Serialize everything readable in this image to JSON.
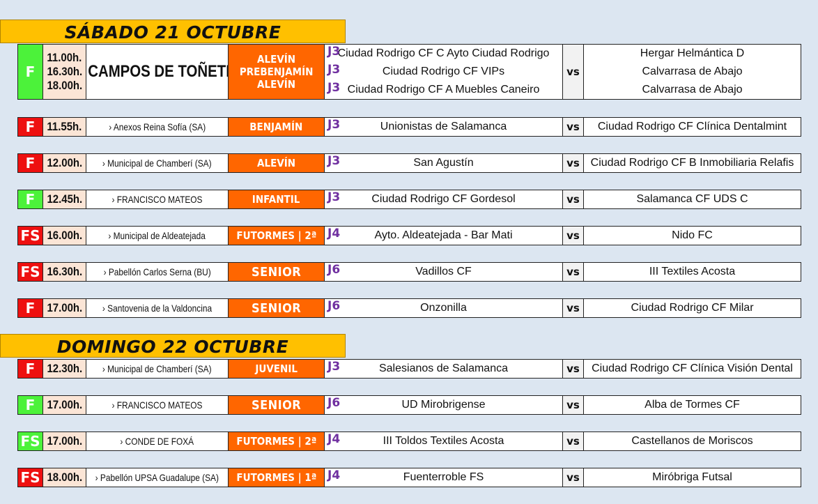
{
  "colors": {
    "home": "#4cf23a",
    "away": "#ee1010",
    "category": "#ff6600",
    "jornada": "#7030a0",
    "header": "#ffc000",
    "time": "#fbe5d6"
  },
  "days": [
    {
      "title": "SÁBADO 21 OCTUBRE",
      "matches": [
        {
          "sport": "F",
          "status": "home",
          "times": [
            "11.00h.",
            "16.30h.",
            "18.00h."
          ],
          "venue": "› CAMPOS DE TOÑETE",
          "venue_big": true,
          "categories": [
            "ALEVÍN",
            "PREBENJAMÍN",
            "ALEVÍN"
          ],
          "jornadas": [
            "J3",
            "J3",
            "J3"
          ],
          "home": [
            "Ciudad Rodrigo CF C Ayto Ciudad Rodrigo",
            "Ciudad Rodrigo CF VIPs",
            "Ciudad Rodrigo CF A Muebles Caneiro"
          ],
          "vs": "vs",
          "away": [
            "Hergar Helmántica D",
            "Calvarrasa de Abajo",
            "Calvarrasa de Abajo"
          ]
        },
        {
          "sport": "F",
          "status": "away",
          "times": [
            "11.55h."
          ],
          "venue": "› Anexos Reina Sofía (SA)",
          "categories": [
            "BENJAMÍN"
          ],
          "jornadas": [
            "J3"
          ],
          "home": [
            "Unionistas de Salamanca"
          ],
          "vs": "vs",
          "away": [
            "Ciudad Rodrigo CF Clínica Dentalmint"
          ]
        },
        {
          "sport": "F",
          "status": "away",
          "times": [
            "12.00h."
          ],
          "venue": "› Municipal de Chamberí (SA)",
          "categories": [
            "ALEVÍN"
          ],
          "jornadas": [
            "J3"
          ],
          "home": [
            "San Agustín"
          ],
          "vs": "vs",
          "away": [
            "Ciudad Rodrigo CF B Inmobiliaria Relafis"
          ]
        },
        {
          "sport": "F",
          "status": "home",
          "times": [
            "12.45h."
          ],
          "venue": "› FRANCISCO MATEOS",
          "categories": [
            "INFANTIL"
          ],
          "jornadas": [
            "J3"
          ],
          "home": [
            "Ciudad Rodrigo CF Gordesol"
          ],
          "vs": "vs",
          "away": [
            "Salamanca CF UDS C"
          ]
        },
        {
          "sport": "FS",
          "status": "away",
          "times": [
            "16.00h."
          ],
          "venue": "› Municipal de Aldeatejada",
          "categories": [
            "FUTORMES | 2ª"
          ],
          "jornadas": [
            "J4"
          ],
          "home": [
            "Ayto. Aldeatejada - Bar Mati"
          ],
          "vs": "vs",
          "away": [
            "Nido FC"
          ]
        },
        {
          "sport": "FS",
          "status": "away",
          "times": [
            "16.30h."
          ],
          "venue": "› Pabellón Carlos Serna (BU)",
          "categories": [
            "SENIOR"
          ],
          "jornadas": [
            "J6"
          ],
          "home": [
            "Vadillos CF"
          ],
          "vs": "vs",
          "away": [
            "III Textiles Acosta"
          ]
        },
        {
          "sport": "F",
          "status": "away",
          "times": [
            "17.00h."
          ],
          "venue": "› Santovenia de la Valdoncina",
          "categories": [
            "SENIOR"
          ],
          "jornadas": [
            "J6"
          ],
          "home": [
            "Onzonilla"
          ],
          "vs": "vs",
          "away": [
            "Ciudad Rodrigo CF Milar"
          ]
        }
      ]
    },
    {
      "title": "DOMINGO 22 OCTUBRE",
      "matches": [
        {
          "sport": "F",
          "status": "away",
          "times": [
            "12.30h."
          ],
          "venue": "› Municipal de Chamberí (SA)",
          "categories": [
            "JUVENIL"
          ],
          "jornadas": [
            "J3"
          ],
          "home": [
            "Salesianos de Salamanca"
          ],
          "vs": "vs",
          "away": [
            "Ciudad Rodrigo CF Clínica Visión Dental"
          ]
        },
        {
          "sport": "F",
          "status": "home",
          "times": [
            "17.00h."
          ],
          "venue": "› FRANCISCO MATEOS",
          "categories": [
            "SENIOR"
          ],
          "jornadas": [
            "J6"
          ],
          "home": [
            "UD Mirobrigense"
          ],
          "vs": "vs",
          "away": [
            "Alba de Tormes CF"
          ]
        },
        {
          "sport": "FS",
          "status": "home",
          "times": [
            "17.00h."
          ],
          "venue": "› CONDE DE FOXÁ",
          "categories": [
            "FUTORMES | 2ª"
          ],
          "jornadas": [
            "J4"
          ],
          "home": [
            "III Toldos Textiles Acosta"
          ],
          "vs": "vs",
          "away": [
            "Castellanos de Moriscos"
          ]
        },
        {
          "sport": "FS",
          "status": "away",
          "times": [
            "18.00h."
          ],
          "venue": "› Pabellón UPSA Guadalupe (SA)",
          "categories": [
            "FUTORMES | 1ª"
          ],
          "jornadas": [
            "J4"
          ],
          "home": [
            "Fuenterroble FS"
          ],
          "vs": "vs",
          "away": [
            "Miróbriga Futsal"
          ]
        }
      ]
    }
  ]
}
